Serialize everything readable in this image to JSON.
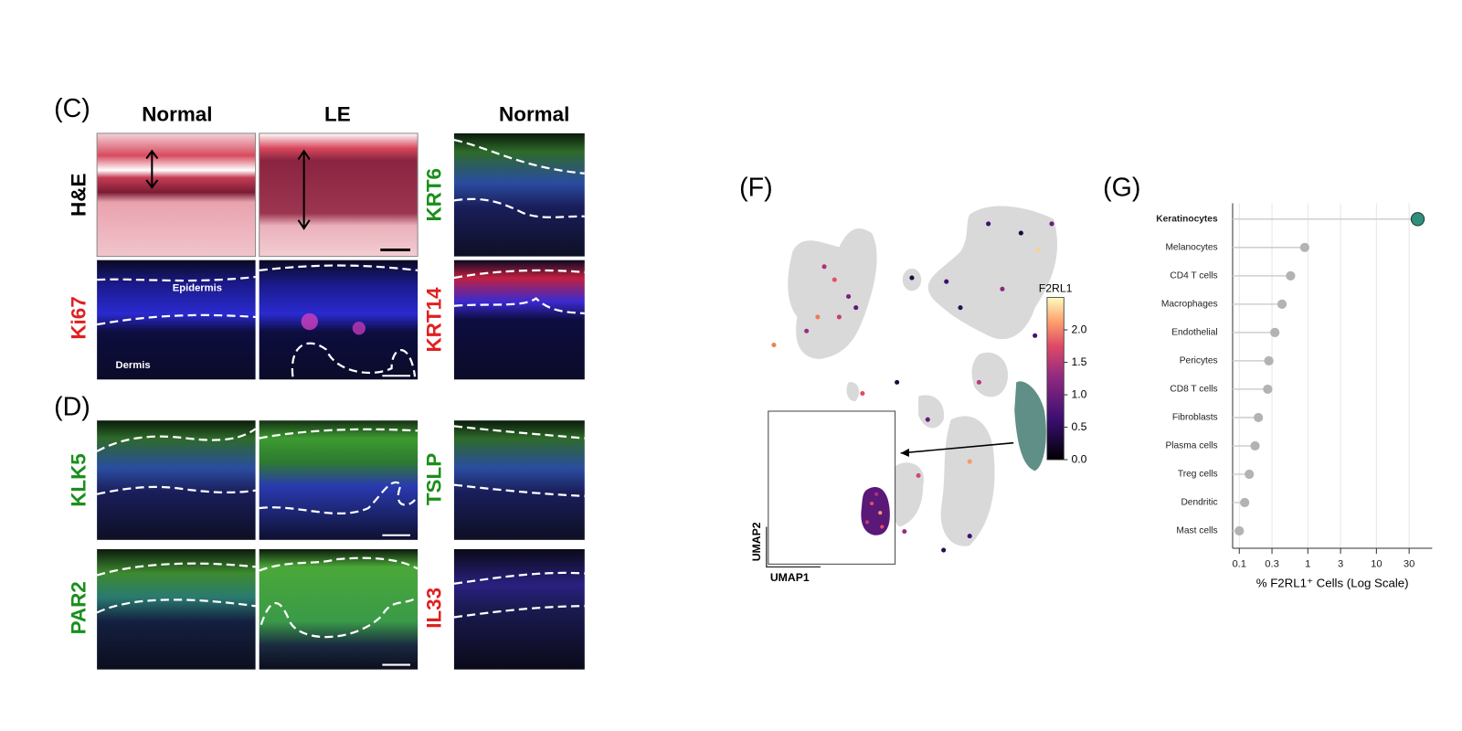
{
  "panel_c": {
    "label": "(C)",
    "column_headers": [
      "Normal",
      "LE",
      "Normal"
    ],
    "row_labels": [
      "H&E",
      "Ki67",
      "KRT6",
      "KRT14"
    ],
    "annotations": [
      "Epidermis",
      "Dermis"
    ]
  },
  "panel_d": {
    "label": "(D)",
    "row_labels": [
      "KLK5",
      "PAR2",
      "TSLP",
      "IL33"
    ]
  },
  "panel_f": {
    "label": "(F)",
    "axis_labels": [
      "UMAP1",
      "UMAP2"
    ],
    "colorbar": {
      "title": "F2RL1",
      "lim": [
        0,
        2.5
      ],
      "ticks": [
        {
          "value": 0,
          "label": "0.0"
        },
        {
          "value": 0.5,
          "label": "0.5"
        },
        {
          "value": 1,
          "label": "1.0"
        },
        {
          "value": 1.5,
          "label": "1.5"
        },
        {
          "value": 2,
          "label": "2.0"
        }
      ]
    }
  },
  "chart_data": {
    "type": "lollipop",
    "title": "(G)",
    "xlabel": "% F2RL1⁺ Cells (Log Scale)",
    "categories": [
      "Keratinocytes",
      "Melanocytes",
      "CD4 T cells",
      "Macrophages",
      "Endothelial",
      "Pericytes",
      "CD8 T cells",
      "Fibroblasts",
      "Plasma cells",
      "Treg cells",
      "Dendritic",
      "Mast cells"
    ],
    "values": [
      40,
      0.9,
      0.56,
      0.42,
      0.33,
      0.27,
      0.26,
      0.19,
      0.17,
      0.14,
      0.12,
      0.1
    ],
    "color": "#b3b3b3",
    "highlight_color": "#2f8f7c",
    "highlight_index": 0,
    "log_x": true,
    "xlim": [
      0.08,
      65
    ],
    "xticks": [
      0.1,
      0.3,
      1,
      3,
      10,
      30
    ],
    "grid": true
  }
}
